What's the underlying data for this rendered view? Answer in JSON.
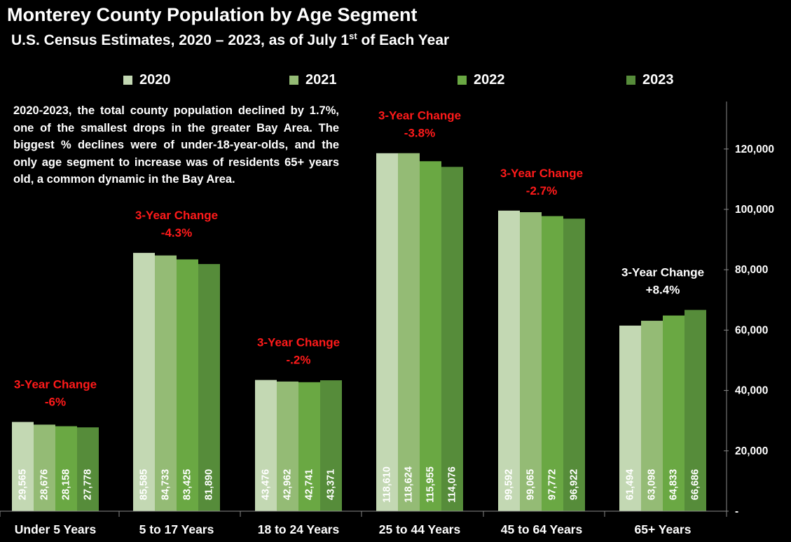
{
  "title": "Monterey County Population by Age Segment",
  "subtitle_main": "U.S. Census Estimates, 2020 – 2023, as of July 1",
  "subtitle_sup": "st",
  "subtitle_end": " of Each Year",
  "note": "2020-2023, the total county population declined by 1.7%, one of the smallest drops in the greater Bay Area. The biggest % declines were of under-18-year-olds, and the only age segment to increase was of residents 65+ years old, a common dynamic in the Bay Area.",
  "colors": {
    "2020": "#c3d8b3",
    "2021": "#94bb75",
    "2022": "#6aa843",
    "2023": "#568c3a",
    "change_negative": "#ff1a1a",
    "change_positive": "#ffffff"
  },
  "chart_data": {
    "type": "bar",
    "title": "Monterey County Population by Age Segment",
    "categories": [
      "Under 5 Years",
      "5 to 17 Years",
      "18 to 24 Years",
      "25 to 44 Years",
      "45 to 64 Years",
      "65+ Years"
    ],
    "series": [
      {
        "name": "2020",
        "values": [
          29565,
          85585,
          43476,
          118610,
          99592,
          61494
        ]
      },
      {
        "name": "2021",
        "values": [
          28676,
          84733,
          42962,
          118624,
          99065,
          63098
        ]
      },
      {
        "name": "2022",
        "values": [
          28158,
          83425,
          42741,
          115955,
          97772,
          64833
        ]
      },
      {
        "name": "2023",
        "values": [
          27778,
          81890,
          43371,
          114076,
          96922,
          66686
        ]
      }
    ],
    "value_labels": [
      [
        "29,565",
        "85,585",
        "43,476",
        "118,610",
        "99,592",
        "61,494"
      ],
      [
        "28,676",
        "84,733",
        "42,962",
        "118,624",
        "99,065",
        "63,098"
      ],
      [
        "28,158",
        "83,425",
        "42,741",
        "115,955",
        "97,772",
        "64,833"
      ],
      [
        "27,778",
        "81,890",
        "43,371",
        "114,076",
        "96,922",
        "66,686"
      ]
    ],
    "change_label": "3-Year Change",
    "changes": [
      "-6%",
      "-4.3%",
      "-.2%",
      "-3.8%",
      "-2.7%",
      "+8.4%"
    ],
    "ylim": [
      0,
      140000
    ],
    "yticks": [
      0,
      20000,
      40000,
      60000,
      80000,
      100000,
      120000
    ],
    "ytick_labels": [
      "-",
      "20,000",
      "40,000",
      "60,000",
      "80,000",
      "100,000",
      "120,000"
    ],
    "legend_position": "top",
    "yaxis_side": "right",
    "grid": false
  }
}
